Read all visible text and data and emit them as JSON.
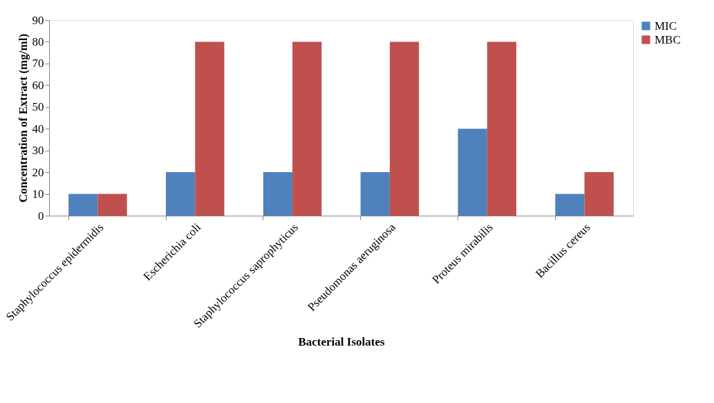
{
  "chart_data": {
    "type": "bar",
    "xlabel": "Bacterial Isolates",
    "ylabel": "Concentration of Extract  (mg/ml)",
    "categories": [
      "Staphylococcus epidermidis",
      "Escherichia coli",
      "Staphylococcus saprophyticus",
      "Pseudomonas aeruginosa",
      "Proteus mirabilis",
      "Bacillus cereus"
    ],
    "series": [
      {
        "name": "MIC",
        "color": "#4f81bd",
        "values": [
          10,
          20,
          20,
          20,
          40,
          10
        ]
      },
      {
        "name": "MBC",
        "color": "#c0504d",
        "values": [
          10,
          80,
          80,
          80,
          80,
          20
        ]
      }
    ],
    "ylim": [
      0,
      90
    ],
    "yticks": [
      0,
      10,
      20,
      30,
      40,
      50,
      60,
      70,
      80,
      90
    ],
    "grid": false,
    "legend": "right"
  }
}
